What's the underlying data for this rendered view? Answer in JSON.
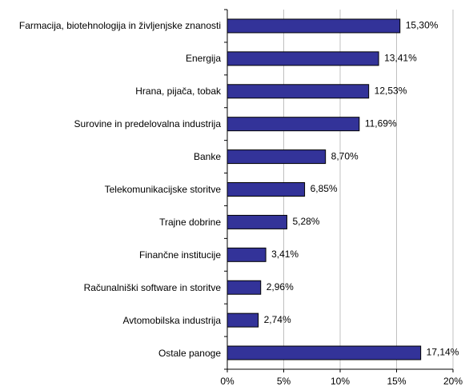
{
  "chart_data": {
    "type": "bar",
    "orientation": "horizontal",
    "categories": [
      "Farmacija, biotehnologija in življenjske znanosti",
      "Energija",
      "Hrana, pijača, tobak",
      "Surovine in predelovalna industrija",
      "Banke",
      "Telekomunikacijske storitve",
      "Trajne dobrine",
      "Finančne institucije",
      "Računalniški software in storitve",
      "Avtomobilska industrija",
      "Ostale panoge"
    ],
    "values": [
      15.3,
      13.41,
      12.53,
      11.69,
      8.7,
      6.85,
      5.28,
      3.41,
      2.96,
      2.74,
      17.14
    ],
    "value_labels": [
      "15,30%",
      "13,41%",
      "12,53%",
      "11,69%",
      "8,70%",
      "6,85%",
      "5,28%",
      "3,41%",
      "2,96%",
      "2,74%",
      "17,14%"
    ],
    "color": "#333399",
    "xlim": [
      0,
      20
    ],
    "xticks": [
      {
        "value": 0,
        "label": "0%"
      },
      {
        "value": 5,
        "label": "5%"
      },
      {
        "value": 10,
        "label": "10%"
      },
      {
        "value": 15,
        "label": "15%"
      },
      {
        "value": 20,
        "label": "20%"
      }
    ],
    "grid": true
  }
}
